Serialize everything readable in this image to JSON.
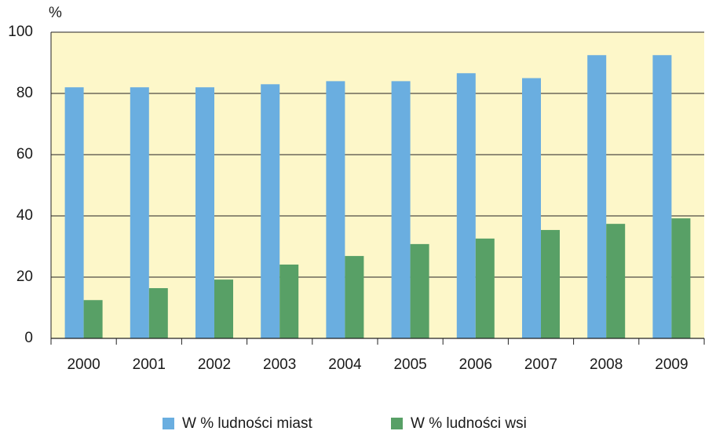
{
  "chart_data": {
    "type": "bar",
    "y_label": "%",
    "categories": [
      "2000",
      "2001",
      "2002",
      "2003",
      "2004",
      "2005",
      "2006",
      "2007",
      "2008",
      "2009"
    ],
    "series": [
      {
        "name": "W % ludności miast",
        "color": "#6aaee0",
        "values": [
          82,
          82,
          82,
          83,
          84,
          84,
          86.6,
          85,
          92.5,
          92.5
        ]
      },
      {
        "name": "W % ludności wsi",
        "color": "#58a066",
        "values": [
          12.5,
          16.4,
          19.2,
          24.1,
          26.9,
          30.8,
          32.6,
          35.4,
          37.4,
          39.2
        ]
      }
    ],
    "ylim": [
      0,
      100
    ],
    "yticks": [
      0,
      20,
      40,
      60,
      80,
      100
    ],
    "grid": true,
    "plot_background": "#fdf7c9"
  }
}
